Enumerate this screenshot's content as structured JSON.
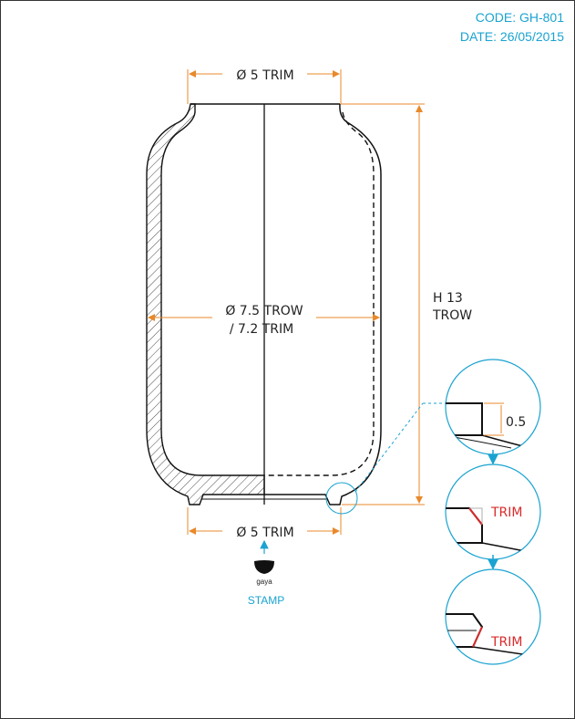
{
  "header": {
    "code": "CODE: GH-801",
    "date": "DATE: 26/05/2015"
  },
  "dimensions": {
    "top_diameter": "Ø 5 TRIM",
    "body_diameter_line1": "Ø 7.5 TROW",
    "body_diameter_line2": "/ 7.2 TRIM",
    "bottom_diameter": "Ø 5 TRIM",
    "height_line1": "H 13",
    "height_line2": "TROW"
  },
  "stamp": {
    "logo_text": "gaya",
    "label": "STAMP"
  },
  "details": {
    "detail1_value": "0.5",
    "detail2_label": "TRIM",
    "detail3_label": "TRIM"
  },
  "colors": {
    "dimension": "#e8892b",
    "accent_blue": "#1aa3d1",
    "trim_red": "#d92b2b",
    "outline": "#111111"
  }
}
